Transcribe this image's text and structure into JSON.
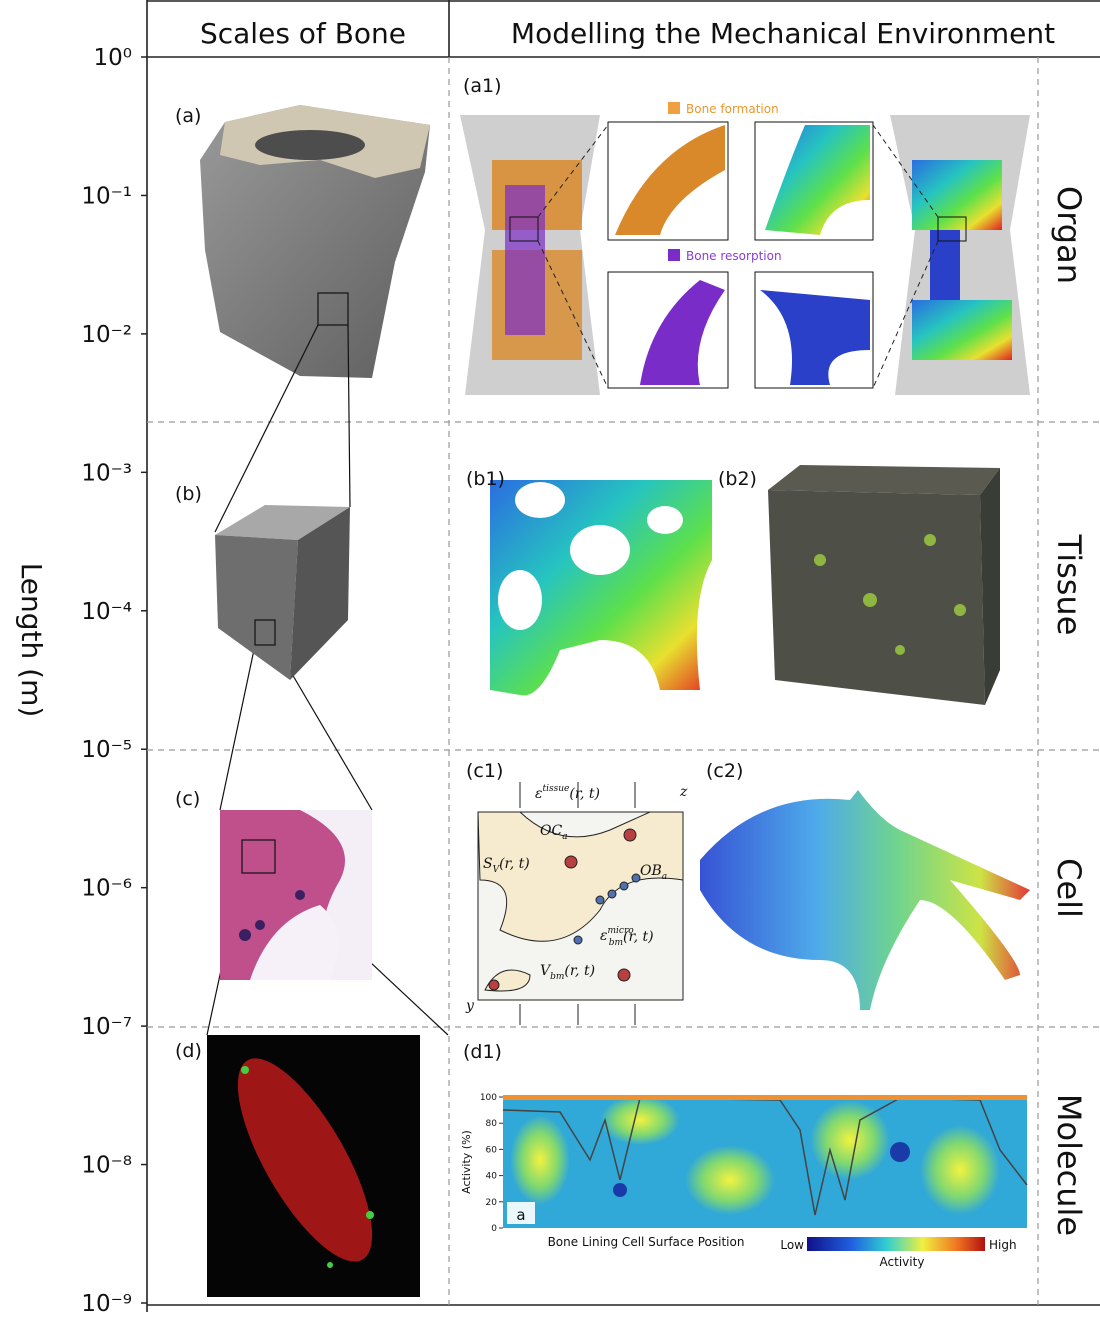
{
  "header": {
    "left": "Scales of Bone",
    "right": "Modelling the Mechanical Environment"
  },
  "axis": {
    "label": "Length (m)",
    "log": true,
    "lim": [
      1e-09,
      1
    ],
    "ticks": [
      {
        "value": 1,
        "label": "10⁰"
      },
      {
        "value": 0.1,
        "label": "10⁻¹"
      },
      {
        "value": 0.01,
        "label": "10⁻²"
      },
      {
        "value": 0.001,
        "label": "10⁻³"
      },
      {
        "value": 0.0001,
        "label": "10⁻⁴"
      },
      {
        "value": 1e-05,
        "label": "10⁻⁵"
      },
      {
        "value": 1e-06,
        "label": "10⁻⁶"
      },
      {
        "value": 1e-07,
        "label": "10⁻⁷"
      },
      {
        "value": 1e-08,
        "label": "10⁻⁸"
      },
      {
        "value": 1e-09,
        "label": "10⁻⁹"
      }
    ]
  },
  "rows": [
    "Organ",
    "Tissue",
    "Cell",
    "Molecule"
  ],
  "panels": {
    "a": "(a)",
    "b": "(b)",
    "c": "(c)",
    "d": "(d)",
    "a1": "(a1)",
    "b1": "(b1)",
    "b2": "(b2)",
    "c1": "(c1)",
    "c2": "(c2)",
    "d1": "(d1)"
  },
  "a1": {
    "formation": "Bone formation",
    "resorption": "Bone resorption"
  },
  "c1": {
    "strain_tissue": {
      "base": "ε",
      "sup": "tissue",
      "rest": "(r, t)"
    },
    "oc": {
      "base": "OC",
      "sub": "a"
    },
    "ob": {
      "base": "OB",
      "sub": "a"
    },
    "sv": {
      "base": "S",
      "sub": "V",
      "rest": "(r, t)"
    },
    "strain_micro": {
      "base": "ε",
      "sup": "micro",
      "sub": "bm",
      "rest": "(r, t)"
    },
    "vbm": {
      "base": "V",
      "sub": "bm",
      "rest": "(r, t)"
    },
    "z": "z",
    "y": "y"
  },
  "d1": {
    "ylabel": "Activity (%)",
    "yticks": [
      0,
      20,
      40,
      60,
      80,
      100
    ],
    "inset": "a",
    "xlabel": "Bone Lining Cell Surface Position",
    "low": "Low",
    "high": "High",
    "colorbar": "Activity"
  }
}
